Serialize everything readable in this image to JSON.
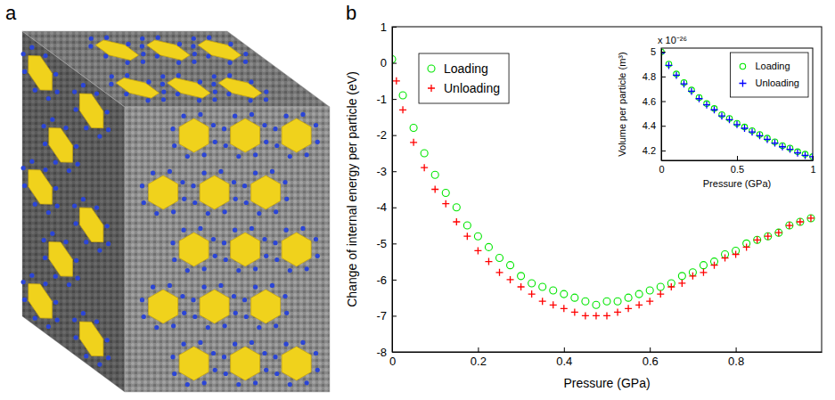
{
  "panel_labels": [
    "a",
    "b"
  ],
  "chart_data": [
    {
      "type": "scatter",
      "xlabel": "Pressure (GPa)",
      "ylabel": "Change of internal energy per particle (eV)",
      "xlim": [
        0,
        1
      ],
      "xticks": [
        0,
        0.2,
        0.4,
        0.6,
        0.8
      ],
      "ylim": [
        -8,
        1
      ],
      "yticks": [
        1,
        0,
        -1,
        -2,
        -3,
        -4,
        -5,
        -6,
        -7,
        -8
      ],
      "legend": "upper left",
      "series": [
        {
          "name": "Loading",
          "color": "#00e600",
          "marker": "circle",
          "x": [
            0,
            0.025,
            0.05,
            0.075,
            0.1,
            0.125,
            0.15,
            0.175,
            0.2,
            0.225,
            0.25,
            0.275,
            0.3,
            0.325,
            0.35,
            0.375,
            0.4,
            0.425,
            0.45,
            0.475,
            0.5,
            0.525,
            0.55,
            0.575,
            0.6,
            0.625,
            0.65,
            0.675,
            0.7,
            0.725,
            0.75,
            0.775,
            0.8,
            0.825,
            0.85,
            0.875,
            0.9,
            0.925,
            0.95,
            0.975
          ],
          "values": [
            0.1,
            -0.9,
            -1.8,
            -2.5,
            -3.1,
            -3.6,
            -4.0,
            -4.5,
            -4.8,
            -5.1,
            -5.4,
            -5.6,
            -5.9,
            -6.1,
            -6.2,
            -6.3,
            -6.4,
            -6.5,
            -6.6,
            -6.7,
            -6.6,
            -6.6,
            -6.5,
            -6.4,
            -6.3,
            -6.2,
            -6.1,
            -5.9,
            -5.8,
            -5.6,
            -5.5,
            -5.3,
            -5.2,
            -5.0,
            -4.9,
            -4.8,
            -4.7,
            -4.5,
            -4.4,
            -4.3
          ]
        },
        {
          "name": "Unloading",
          "color": "#ff0000",
          "marker": "plus",
          "x": [
            0.01,
            0.025,
            0.05,
            0.075,
            0.1,
            0.125,
            0.15,
            0.175,
            0.2,
            0.225,
            0.25,
            0.275,
            0.3,
            0.325,
            0.35,
            0.375,
            0.4,
            0.425,
            0.45,
            0.475,
            0.5,
            0.525,
            0.55,
            0.575,
            0.6,
            0.625,
            0.65,
            0.675,
            0.7,
            0.725,
            0.75,
            0.775,
            0.8,
            0.825,
            0.85,
            0.875,
            0.9,
            0.925,
            0.95,
            0.975
          ],
          "values": [
            -0.5,
            -1.3,
            -2.2,
            -2.9,
            -3.5,
            -3.9,
            -4.4,
            -4.8,
            -5.2,
            -5.5,
            -5.8,
            -6.0,
            -6.2,
            -6.4,
            -6.6,
            -6.7,
            -6.8,
            -6.9,
            -7.0,
            -7.0,
            -7.0,
            -6.9,
            -6.8,
            -6.7,
            -6.6,
            -6.4,
            -6.2,
            -6.1,
            -5.9,
            -5.8,
            -5.6,
            -5.4,
            -5.3,
            -5.1,
            -4.9,
            -4.8,
            -4.7,
            -4.5,
            -4.4,
            -4.3
          ]
        }
      ]
    },
    {
      "type": "scatter",
      "xlabel": "Pressure (GPa)",
      "ylabel": "Volume per particle (m³)",
      "y_multiplier": "x 10⁻²⁶",
      "xlim": [
        0,
        1
      ],
      "xticks": [
        0,
        0.5,
        1
      ],
      "ylim": [
        4.12,
        5.03
      ],
      "yticks": [
        4.2,
        4.4,
        4.6,
        4.8,
        5
      ],
      "legend": "upper right",
      "series": [
        {
          "name": "Loading",
          "color": "#00e600",
          "marker": "circle",
          "x": [
            0,
            0.05,
            0.1,
            0.15,
            0.2,
            0.25,
            0.3,
            0.35,
            0.4,
            0.45,
            0.5,
            0.55,
            0.6,
            0.65,
            0.7,
            0.75,
            0.8,
            0.85,
            0.9,
            0.95,
            1
          ],
          "values": [
            5.0,
            4.9,
            4.82,
            4.75,
            4.69,
            4.63,
            4.58,
            4.54,
            4.49,
            4.46,
            4.42,
            4.39,
            4.36,
            4.33,
            4.3,
            4.27,
            4.24,
            4.22,
            4.19,
            4.17,
            4.15
          ]
        },
        {
          "name": "Unloading",
          "color": "#0000ff",
          "marker": "plus",
          "x": [
            0,
            0.05,
            0.1,
            0.15,
            0.2,
            0.25,
            0.3,
            0.35,
            0.4,
            0.45,
            0.5,
            0.55,
            0.6,
            0.65,
            0.7,
            0.75,
            0.8,
            0.85,
            0.9,
            0.95,
            1
          ],
          "values": [
            4.99,
            4.89,
            4.81,
            4.74,
            4.68,
            4.62,
            4.57,
            4.53,
            4.48,
            4.45,
            4.41,
            4.38,
            4.35,
            4.32,
            4.29,
            4.26,
            4.23,
            4.21,
            4.18,
            4.16,
            4.15
          ]
        }
      ]
    }
  ]
}
